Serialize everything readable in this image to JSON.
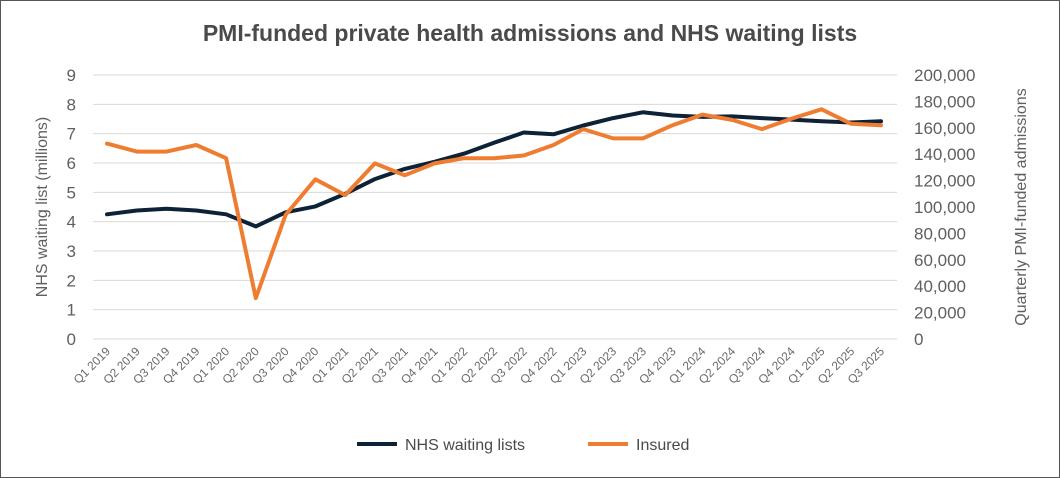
{
  "chart_data": {
    "type": "line",
    "title": "PMI-funded private health admissions and NHS waiting lists",
    "ylabel_left": "NHS waiting list (millions)",
    "ylabel_right": "Quarterly PMI-funded admissions",
    "ylim_left": [
      0,
      9
    ],
    "ylim_right": [
      0,
      200000
    ],
    "yticks_left": [
      "0",
      "1",
      "2",
      "3",
      "4",
      "5",
      "6",
      "7",
      "8",
      "9"
    ],
    "yticks_right": [
      "0",
      "20,000",
      "40,000",
      "60,000",
      "80,000",
      "100,000",
      "120,000",
      "140,000",
      "160,000",
      "180,000",
      "200,000"
    ],
    "grid": true,
    "legend_position": "bottom",
    "categories": [
      "Q1 2019",
      "Q2 2019",
      "Q3 2019",
      "Q4 2019",
      "Q1 2020",
      "Q2 2020",
      "Q3 2020",
      "Q4 2020",
      "Q1 2021",
      "Q2 2021",
      "Q3 2021",
      "Q4 2021",
      "Q1 2022",
      "Q2 2022",
      "Q3 2022",
      "Q4 2022",
      "Q1 2023",
      "Q2 2023",
      "Q3 2023",
      "Q4 2023",
      "Q1 2024",
      "Q2 2024",
      "Q3 2024",
      "Q4 2024",
      "Q1 2025",
      "Q2 2025",
      "Q3 2025"
    ],
    "series": [
      {
        "name": "NHS waiting lists",
        "axis": "left",
        "color": "#0d2137",
        "values": [
          4.25,
          4.38,
          4.44,
          4.38,
          4.25,
          3.84,
          4.32,
          4.52,
          4.95,
          5.45,
          5.8,
          6.04,
          6.32,
          6.69,
          7.04,
          6.98,
          7.28,
          7.53,
          7.73,
          7.62,
          7.57,
          7.59,
          7.53,
          7.48,
          7.42,
          7.38,
          7.42
        ]
      },
      {
        "name": "Insured",
        "axis": "right",
        "color": "#ef7d31",
        "values": [
          148000,
          142000,
          142000,
          147000,
          137000,
          31000,
          94000,
          121000,
          109000,
          133000,
          124000,
          133000,
          137000,
          137000,
          139000,
          147000,
          159000,
          152000,
          152000,
          162000,
          170000,
          166000,
          159000,
          167000,
          174000,
          163000,
          162000
        ]
      }
    ]
  }
}
